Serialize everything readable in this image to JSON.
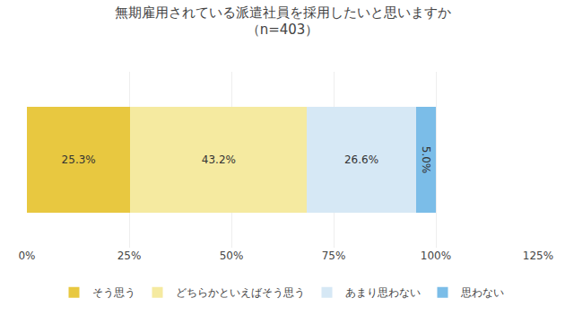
{
  "chart_data": {
    "type": "bar",
    "orientation": "horizontal",
    "stacked": true,
    "title": "無期雇用されている派遣社員を採用したいと思いますか",
    "subtitle": "（n=403）",
    "categories": [
      null
    ],
    "series": [
      {
        "name": "そう思う",
        "color": "#E8C840",
        "values": [
          25.3
        ],
        "value_labels": [
          "25.3%"
        ]
      },
      {
        "name": "どちらかといえばそう思う",
        "color": "#F5EAA0",
        "values": [
          43.2
        ],
        "value_labels": [
          "43.2%"
        ]
      },
      {
        "name": "あまり思わない",
        "color": "#D6E8F5",
        "values": [
          26.6
        ],
        "value_labels": [
          "26.6%"
        ]
      },
      {
        "name": "思わない",
        "color": "#7BBDE8",
        "values": [
          5.0
        ],
        "value_labels": [
          "5.0%"
        ]
      }
    ],
    "xlim": [
      0,
      125
    ],
    "xticks": [
      {
        "value": 0,
        "label": "0%"
      },
      {
        "value": 25,
        "label": "25%"
      },
      {
        "value": 50,
        "label": "50%"
      },
      {
        "value": 75,
        "label": "75%"
      },
      {
        "value": 100,
        "label": "100%"
      },
      {
        "value": 125,
        "label": "125%"
      }
    ],
    "grid": true,
    "data_labels": true,
    "legend": "bottom",
    "tick_labels": "x"
  }
}
